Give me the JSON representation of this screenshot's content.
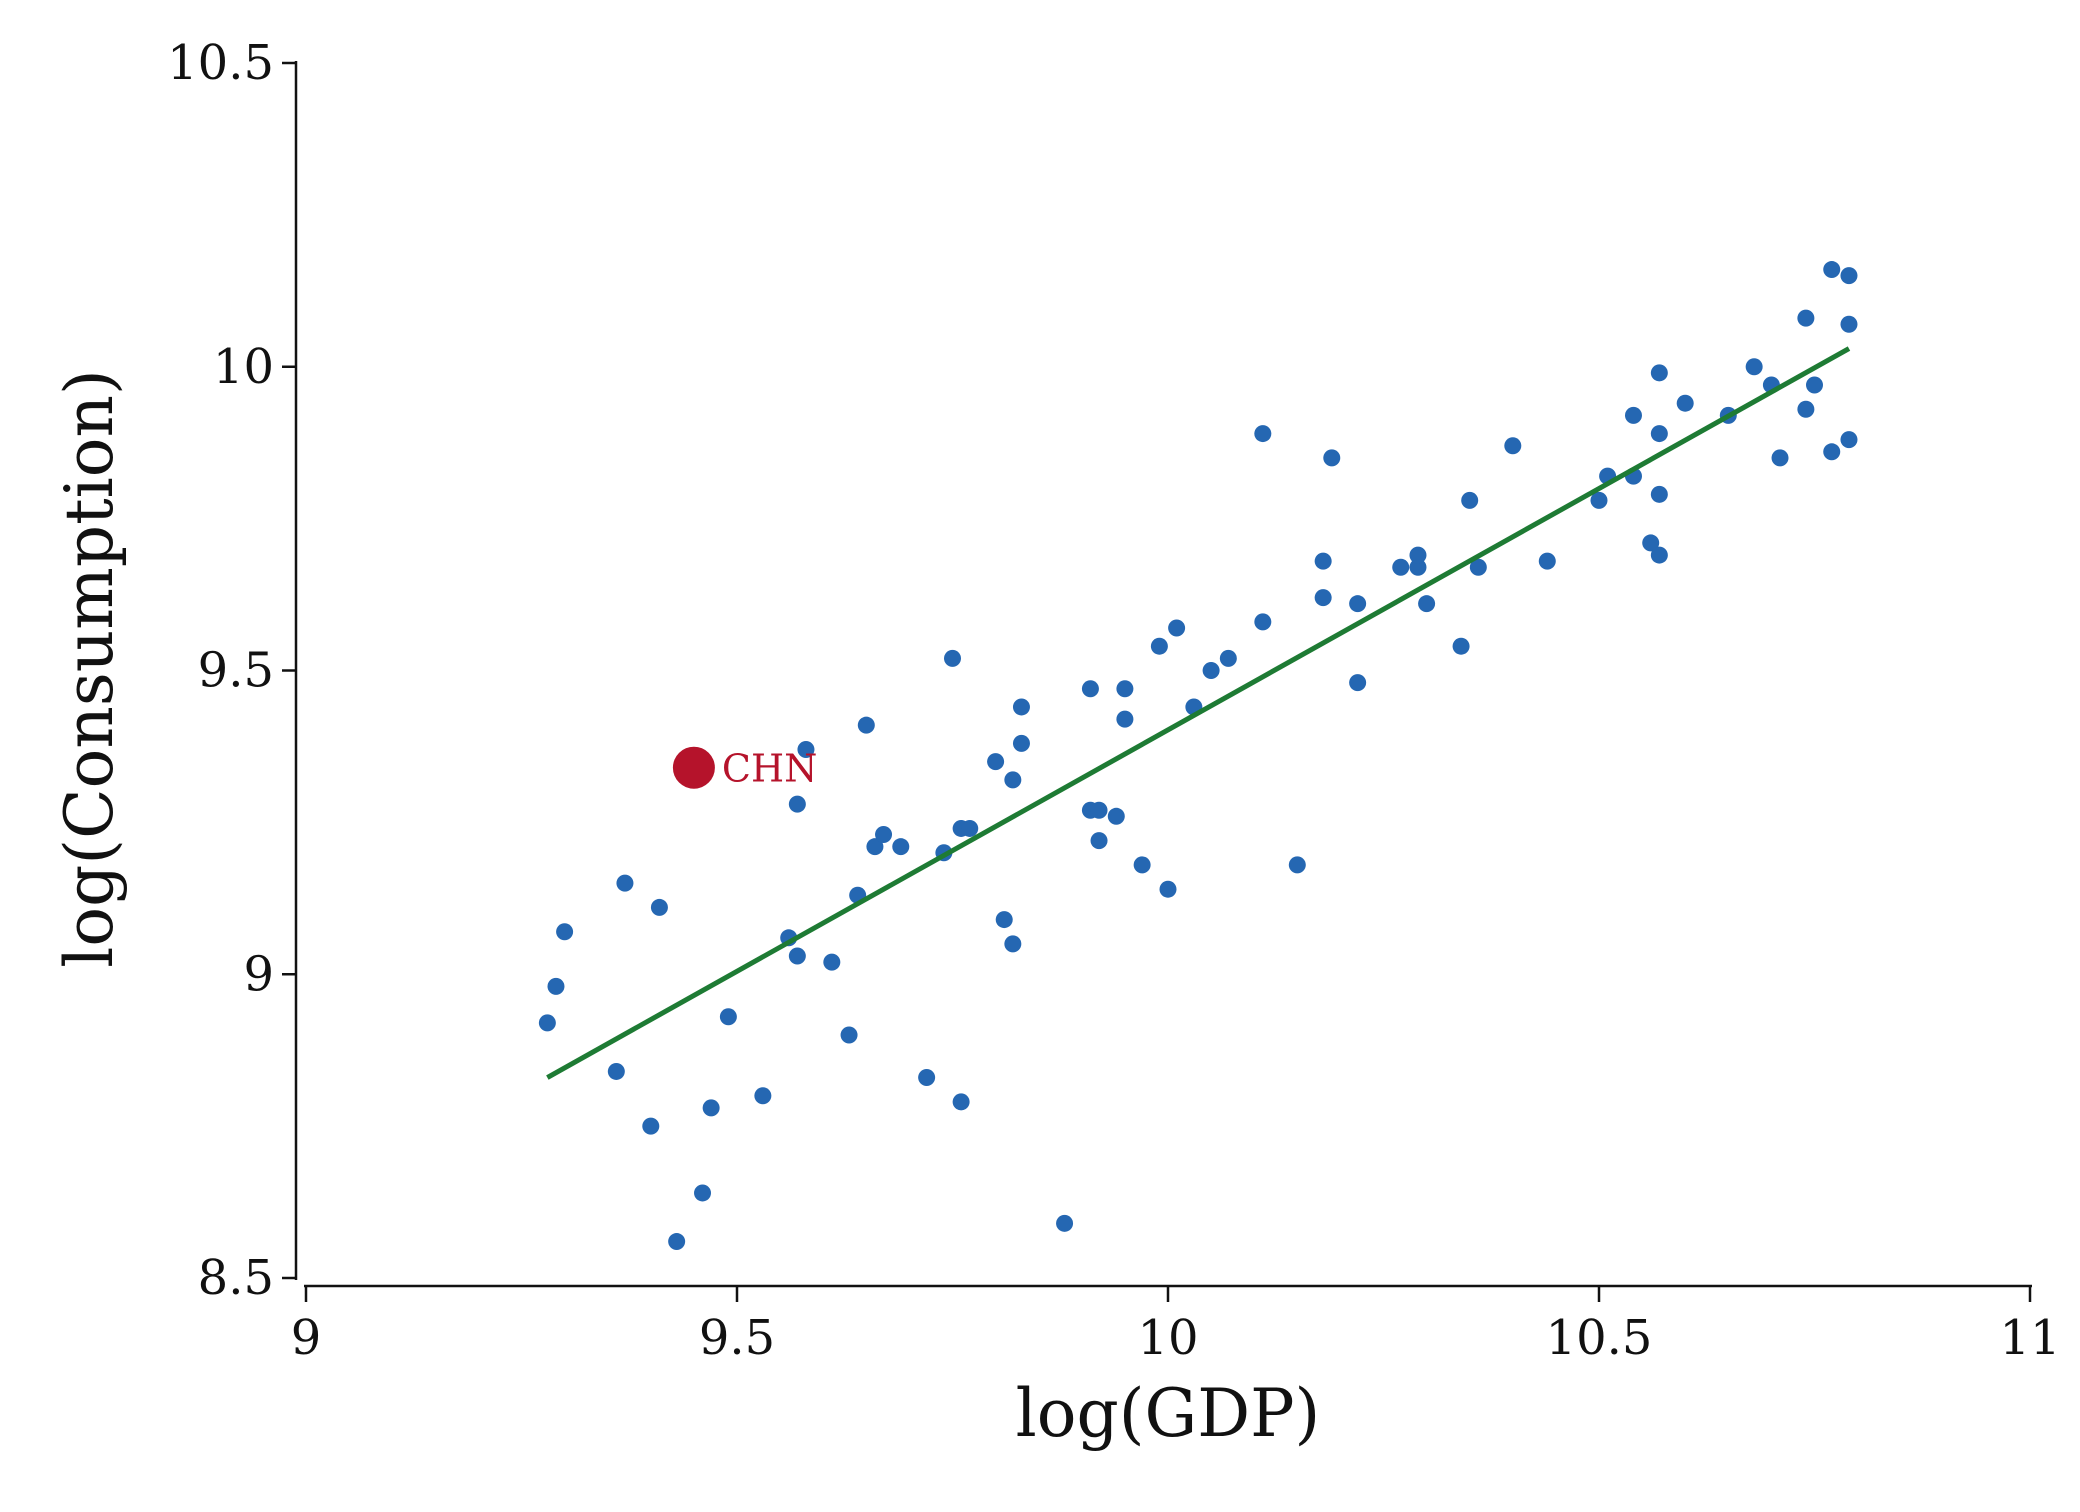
{
  "colors": {
    "points": "#2567b2",
    "fit_line": "#1e7b34",
    "highlight": "#b5132b",
    "axis": "#111111"
  },
  "chart_data": {
    "type": "scatter",
    "title": "",
    "xlabel": "log(GDP)",
    "ylabel": "log(Consumption)",
    "xlim": [
      9,
      11
    ],
    "ylim": [
      8.5,
      10.5
    ],
    "xticks": [
      9,
      9.5,
      10,
      10.5,
      11
    ],
    "xtick_labels": [
      "9",
      "9.5",
      "10",
      "10.5",
      "11"
    ],
    "yticks": [
      8.5,
      9,
      9.5,
      10,
      10.5
    ],
    "ytick_labels": [
      "8.5",
      "9",
      "9.5",
      "10",
      "10.5"
    ],
    "grid": false,
    "legend": "none",
    "points": [
      [
        9.28,
        8.92
      ],
      [
        9.29,
        8.98
      ],
      [
        9.3,
        9.07
      ],
      [
        9.36,
        8.84
      ],
      [
        9.37,
        9.15
      ],
      [
        9.4,
        8.75
      ],
      [
        9.41,
        9.11
      ],
      [
        9.43,
        8.56
      ],
      [
        9.46,
        8.64
      ],
      [
        9.47,
        8.78
      ],
      [
        9.49,
        8.93
      ],
      [
        9.53,
        8.8
      ],
      [
        9.56,
        9.06
      ],
      [
        9.57,
        9.03
      ],
      [
        9.57,
        9.28
      ],
      [
        9.58,
        9.37
      ],
      [
        9.61,
        9.02
      ],
      [
        9.63,
        8.9
      ],
      [
        9.64,
        9.13
      ],
      [
        9.65,
        9.41
      ],
      [
        9.66,
        9.21
      ],
      [
        9.67,
        9.23
      ],
      [
        9.69,
        9.21
      ],
      [
        9.72,
        8.83
      ],
      [
        9.74,
        9.2
      ],
      [
        9.75,
        9.52
      ],
      [
        9.76,
        9.24
      ],
      [
        9.76,
        8.79
      ],
      [
        9.77,
        9.24
      ],
      [
        9.8,
        9.35
      ],
      [
        9.81,
        9.09
      ],
      [
        9.82,
        9.05
      ],
      [
        9.82,
        9.32
      ],
      [
        9.83,
        9.38
      ],
      [
        9.83,
        9.44
      ],
      [
        9.88,
        8.59
      ],
      [
        9.91,
        9.47
      ],
      [
        9.91,
        9.27
      ],
      [
        9.92,
        9.27
      ],
      [
        9.92,
        9.22
      ],
      [
        9.94,
        9.26
      ],
      [
        9.95,
        9.47
      ],
      [
        9.95,
        9.42
      ],
      [
        9.97,
        9.18
      ],
      [
        9.99,
        9.54
      ],
      [
        10.0,
        9.14
      ],
      [
        10.01,
        9.57
      ],
      [
        10.03,
        9.44
      ],
      [
        10.05,
        9.5
      ],
      [
        10.07,
        9.52
      ],
      [
        10.11,
        9.58
      ],
      [
        10.11,
        9.89
      ],
      [
        10.15,
        9.18
      ],
      [
        10.18,
        9.62
      ],
      [
        10.18,
        9.68
      ],
      [
        10.19,
        9.85
      ],
      [
        10.22,
        9.61
      ],
      [
        10.22,
        9.48
      ],
      [
        10.27,
        9.67
      ],
      [
        10.29,
        9.67
      ],
      [
        10.29,
        9.69
      ],
      [
        10.3,
        9.61
      ],
      [
        10.34,
        9.54
      ],
      [
        10.35,
        9.78
      ],
      [
        10.36,
        9.67
      ],
      [
        10.4,
        9.87
      ],
      [
        10.44,
        9.68
      ],
      [
        10.5,
        9.78
      ],
      [
        10.51,
        9.82
      ],
      [
        10.54,
        9.82
      ],
      [
        10.54,
        9.92
      ],
      [
        10.56,
        9.71
      ],
      [
        10.57,
        9.69
      ],
      [
        10.57,
        9.79
      ],
      [
        10.57,
        9.89
      ],
      [
        10.57,
        9.99
      ],
      [
        10.6,
        9.94
      ],
      [
        10.65,
        9.92
      ],
      [
        10.68,
        10.0
      ],
      [
        10.7,
        9.97
      ],
      [
        10.71,
        9.85
      ],
      [
        10.74,
        9.93
      ],
      [
        10.74,
        10.08
      ],
      [
        10.75,
        9.97
      ],
      [
        10.77,
        9.86
      ],
      [
        10.77,
        10.16
      ],
      [
        10.79,
        10.15
      ],
      [
        10.79,
        9.88
      ],
      [
        10.79,
        10.07
      ]
    ],
    "fit_line": {
      "x": [
        9.28,
        10.79
      ],
      "y": [
        8.83,
        10.03
      ]
    },
    "highlight": {
      "label": "CHN",
      "x": 9.45,
      "y": 9.34
    }
  }
}
